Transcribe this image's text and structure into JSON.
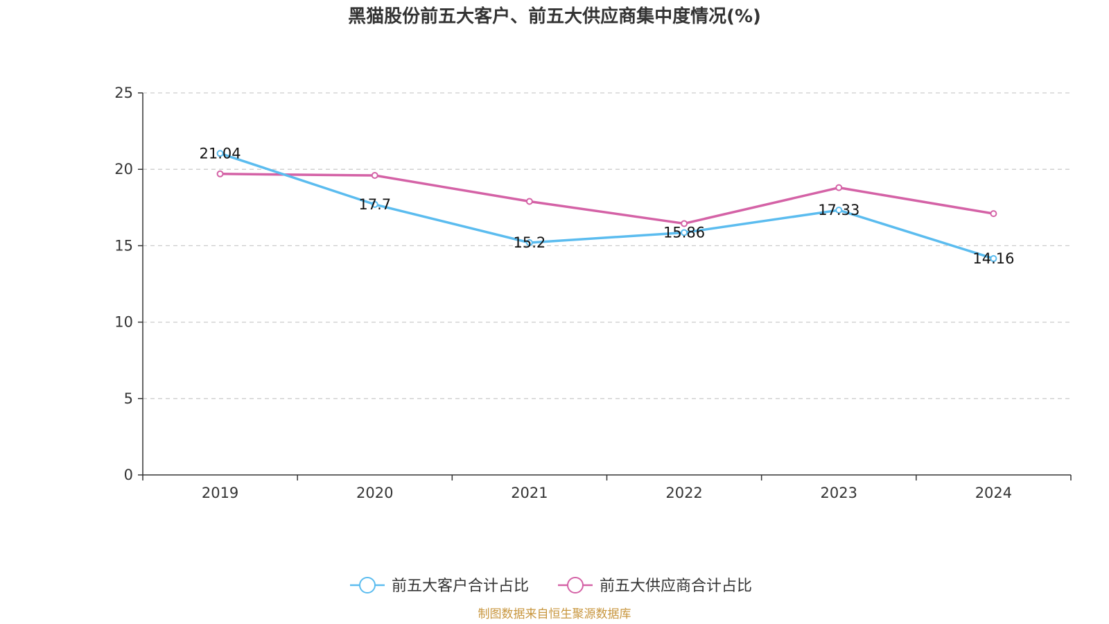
{
  "chart_data": {
    "type": "line",
    "title": "黑猫股份前五大客户、前五大供应商集中度情况(%)",
    "xlabel": "",
    "ylabel": "",
    "categories": [
      "2019",
      "2020",
      "2021",
      "2022",
      "2023",
      "2024"
    ],
    "ylim": [
      0,
      25
    ],
    "yticks": [
      0,
      5,
      10,
      15,
      20,
      25
    ],
    "grid": true,
    "legend_position": "bottom",
    "series": [
      {
        "name": "前五大客户合计占比",
        "color": "#5bbcef",
        "values": [
          21.04,
          17.7,
          15.2,
          15.86,
          17.33,
          14.16
        ],
        "labels": [
          "21.04",
          "17.7",
          "15.2",
          "15.86",
          "17.33",
          "14.16"
        ],
        "show_labels": true
      },
      {
        "name": "前五大供应商合计占比",
        "color": "#d462a6",
        "values": [
          19.7,
          19.6,
          17.9,
          16.45,
          18.8,
          17.1
        ],
        "show_labels": false
      }
    ]
  },
  "source_note": "制图数据来自恒生聚源数据库"
}
